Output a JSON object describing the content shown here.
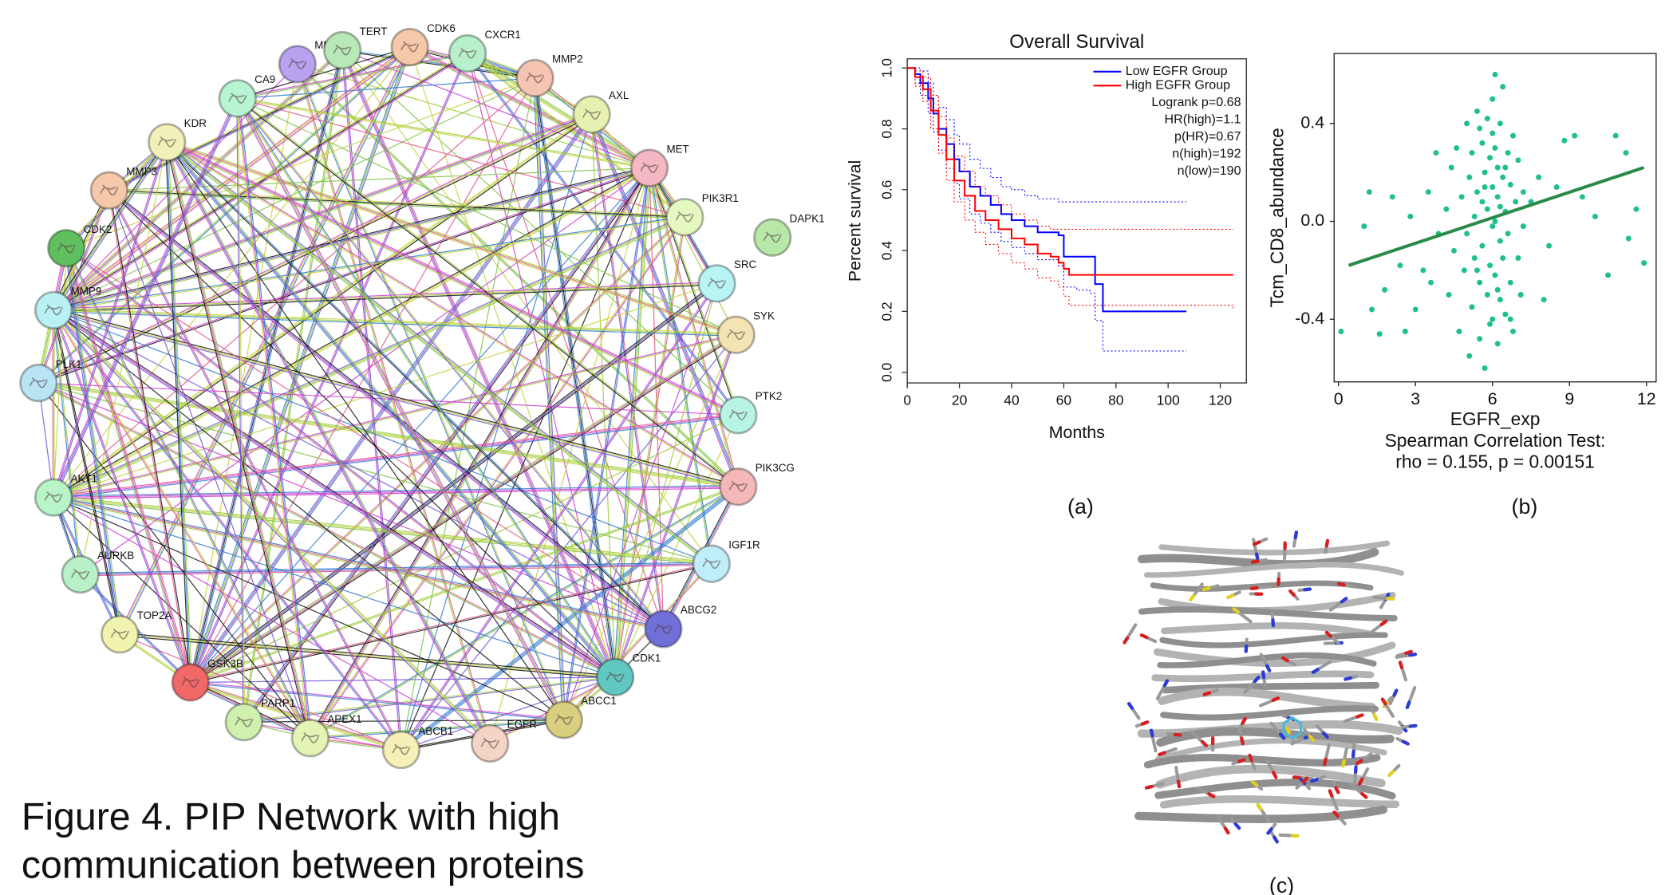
{
  "network": {
    "nodes": [
      {
        "label": "MM",
        "color": "#b9a2f0"
      },
      {
        "label": "TERT",
        "color": "#b8e8b8"
      },
      {
        "label": "CDK6",
        "color": "#f4c8a8"
      },
      {
        "label": "CXCR1",
        "color": "#b8f0cc"
      },
      {
        "label": "MMP2",
        "color": "#f5c4b2"
      },
      {
        "label": "AXL",
        "color": "#e6f0b0"
      },
      {
        "label": "MET",
        "color": "#f4b8c2"
      },
      {
        "label": "PIK3R1",
        "color": "#e4f8c0"
      },
      {
        "label": "DAPK1",
        "color": "#b8e8a8"
      },
      {
        "label": "SRC",
        "color": "#b8f4f4"
      },
      {
        "label": "SYK",
        "color": "#f4e4b4"
      },
      {
        "label": "PTK2",
        "color": "#b8f4e4"
      },
      {
        "label": "PIK3CG",
        "color": "#f4b8b8"
      },
      {
        "label": "IGF1R",
        "color": "#c0eef8"
      },
      {
        "label": "ABCG2",
        "color": "#7070d8"
      },
      {
        "label": "CDK1",
        "color": "#60c8c0"
      },
      {
        "label": "ABCC1",
        "color": "#d8d080"
      },
      {
        "label": "EGFR",
        "color": "#f4d4c4"
      },
      {
        "label": "ABCB1",
        "color": "#f4f0b8"
      },
      {
        "label": "APEX1",
        "color": "#e4f4b4"
      },
      {
        "label": "PARP1",
        "color": "#d0f0b0"
      },
      {
        "label": "GSK3B",
        "color": "#f06868"
      },
      {
        "label": "TOP2A",
        "color": "#f0f4b0"
      },
      {
        "label": "AURKB",
        "color": "#b8f0c8"
      },
      {
        "label": "AKT1",
        "color": "#b8f4c8"
      },
      {
        "label": "PLK1",
        "color": "#b8e4f4"
      },
      {
        "label": "MMP9",
        "color": "#b8f0f4"
      },
      {
        "label": "CDK2",
        "color": "#60c060"
      },
      {
        "label": "MMP3",
        "color": "#f4c8a8"
      },
      {
        "label": "KDR",
        "color": "#f0f0b8"
      },
      {
        "label": "CA9",
        "color": "#b8f4d4"
      }
    ]
  },
  "caption": [
    "Figure 4. PIP Network with high",
    "communication between proteins"
  ],
  "panel_labels": [
    "(a)",
    "(b)",
    "(c)"
  ],
  "chart_data": [
    {
      "type": "step",
      "title": "Overall Survival",
      "x_label": "Months",
      "y_label": "Percent survival",
      "xlim": [
        0,
        130
      ],
      "ylim": [
        -0.035,
        1.03
      ],
      "xticks": [
        0,
        20,
        40,
        60,
        80,
        100,
        120
      ],
      "yticks": [
        {
          "value": 0,
          "label": "0.0"
        },
        0.2,
        0.4,
        0.6,
        0.8,
        {
          "value": 1,
          "label": "1.0"
        }
      ],
      "legend": "upper right",
      "annotations": [
        "Logrank p=0.68",
        "HR(high)=1.1",
        "p(HR)=0.67",
        "n(high)=192",
        "n(low)=190"
      ],
      "series": [
        {
          "name": "Low EGFR Group",
          "color": "#0000ff",
          "x": [
            0,
            3,
            5,
            8,
            10,
            12,
            15,
            18,
            20,
            24,
            28,
            32,
            36,
            40,
            45,
            50,
            58,
            60,
            65,
            70,
            72,
            75,
            107
          ],
          "values": [
            1,
            0.98,
            0.95,
            0.9,
            0.85,
            0.8,
            0.75,
            0.7,
            0.66,
            0.61,
            0.58,
            0.55,
            0.52,
            0.5,
            0.48,
            0.46,
            0.45,
            0.38,
            0.38,
            0.38,
            0.29,
            0.2,
            0.2
          ],
          "ci_upper": [
            1,
            1,
            0.99,
            0.95,
            0.91,
            0.87,
            0.83,
            0.78,
            0.75,
            0.7,
            0.67,
            0.64,
            0.61,
            0.6,
            0.58,
            0.57,
            0.56,
            0.56,
            0.56,
            0.56,
            0.56,
            0.56,
            0.56
          ],
          "ci_lower": [
            1,
            0.95,
            0.91,
            0.85,
            0.79,
            0.73,
            0.67,
            0.62,
            0.57,
            0.52,
            0.49,
            0.46,
            0.43,
            0.41,
            0.39,
            0.37,
            0.35,
            0.28,
            0.27,
            0.26,
            0.17,
            0.07,
            0.07
          ]
        },
        {
          "name": "High EGFR Group",
          "color": "#ff0000",
          "x": [
            0,
            3,
            6,
            9,
            12,
            15,
            18,
            22,
            26,
            30,
            35,
            40,
            45,
            50,
            55,
            58,
            60,
            62,
            125
          ],
          "values": [
            1,
            0.97,
            0.93,
            0.86,
            0.78,
            0.7,
            0.63,
            0.58,
            0.53,
            0.5,
            0.47,
            0.44,
            0.42,
            0.39,
            0.38,
            0.36,
            0.34,
            0.32,
            0.32
          ],
          "ci_upper": [
            1,
            0.99,
            0.97,
            0.91,
            0.84,
            0.77,
            0.71,
            0.66,
            0.61,
            0.58,
            0.55,
            0.52,
            0.5,
            0.48,
            0.47,
            0.47,
            0.47,
            0.47,
            0.47
          ],
          "ci_lower": [
            1,
            0.94,
            0.89,
            0.8,
            0.72,
            0.63,
            0.56,
            0.5,
            0.46,
            0.42,
            0.39,
            0.36,
            0.34,
            0.31,
            0.3,
            0.28,
            0.25,
            0.22,
            0.21
          ]
        }
      ]
    },
    {
      "type": "scatter",
      "x_label": "EGFR_exp",
      "y_label": "Tcm_CD8_abundance",
      "annotations": [
        "Spearman Correlation Test:",
        "rho = 0.155, p = 0.00151"
      ],
      "xlim": [
        -0.17,
        12.375
      ],
      "ylim": [
        -0.656,
        0.686
      ],
      "xticks": [
        0,
        3,
        6,
        9,
        12
      ],
      "yticks": [
        -0.4,
        {
          "value": 0,
          "label": "0.0"
        },
        0.4
      ],
      "color": "#1fc08a",
      "x": [
        0.1,
        1.0,
        1.2,
        1.3,
        1.6,
        1.8,
        2.1,
        2.4,
        2.6,
        2.8,
        3.0,
        3.3,
        3.5,
        3.6,
        3.8,
        3.9,
        10.0,
        10.5,
        10.8,
        11.2,
        11.3,
        11.6,
        11.9,
        9.5,
        9.2,
        8.8,
        8.5,
        8.2,
        7.8,
        8.0,
        7.5,
        4.2,
        4.3,
        4.4,
        4.5,
        4.6,
        4.7,
        4.8,
        4.9,
        5.0,
        5.0,
        5.1,
        5.1,
        5.2,
        5.2,
        5.3,
        5.3,
        5.4,
        5.4,
        5.5,
        5.5,
        5.6,
        5.6,
        5.6,
        5.7,
        5.7,
        5.8,
        5.8,
        5.8,
        5.9,
        5.9,
        6.0,
        6.0,
        6.0,
        6.0,
        6.1,
        6.1,
        6.1,
        6.2,
        6.2,
        6.2,
        6.3,
        6.3,
        6.3,
        6.4,
        6.4,
        6.4,
        6.5,
        6.5,
        6.6,
        6.6,
        6.7,
        6.7,
        6.8,
        6.8,
        6.9,
        7.0,
        7.0,
        7.1,
        7.2,
        7.2,
        5.5,
        5.9,
        6.1,
        6.2,
        5.7,
        6.5,
        6.0,
        5.4,
        6.3,
        6.7
      ],
      "values": [
        -0.45,
        -0.02,
        0.12,
        -0.36,
        -0.46,
        -0.28,
        0.1,
        -0.18,
        -0.45,
        0.02,
        -0.36,
        -0.2,
        0.12,
        -0.25,
        0.28,
        -0.05,
        0.02,
        -0.22,
        0.35,
        0.28,
        -0.07,
        0.05,
        -0.17,
        0.1,
        0.35,
        0.33,
        0.14,
        -0.1,
        0.18,
        -0.32,
        0.08,
        0.05,
        -0.3,
        0.22,
        -0.12,
        0.3,
        -0.45,
        0.1,
        -0.2,
        0.4,
        -0.05,
        -0.55,
        0.18,
        0.28,
        -0.35,
        0.02,
        -0.15,
        0.45,
        0.12,
        -0.25,
        -0.48,
        0.32,
        0.08,
        -0.1,
        -0.6,
        0.2,
        0.42,
        -0.3,
        0.05,
        -0.18,
        0.26,
        0.36,
        -0.4,
        0.14,
        -0.02,
        0.6,
        -0.22,
        0.3,
        0.1,
        -0.5,
        0.22,
        -0.08,
        0.4,
        -0.32,
        0.18,
        0.55,
        -0.15,
        0.04,
        -0.38,
        0.28,
        -0.05,
        0.15,
        -0.25,
        0.35,
        -0.45,
        0.08,
        -0.15,
        0.25,
        -0.3,
        0.12,
        -0.02,
        0.38,
        -0.42,
        0,
        -0.28,
        0.14,
        0.22,
        0.5,
        -0.2,
        0.06,
        -0.4
      ],
      "fit": {
        "color": "#2a8a4a",
        "x": [
          0.4,
          11.9
        ],
        "values": [
          -0.18,
          0.22
        ]
      }
    }
  ]
}
